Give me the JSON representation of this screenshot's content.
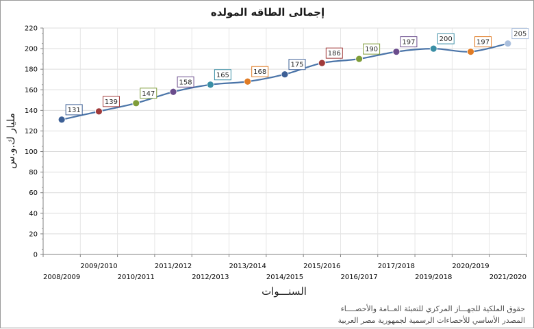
{
  "chart_data": {
    "type": "line",
    "title": "إجمالى الطاقه المولده",
    "xlabel": "السنـــوات",
    "ylabel": "مليار ك.و.س",
    "categories": [
      "2008/2009",
      "2009/2010",
      "2010/2011",
      "2011/2012",
      "2012/2013",
      "2013/2014",
      "2014/2015",
      "2015/2016",
      "2016/2017",
      "2017/2018",
      "2019/2018",
      "2020/2019",
      "2021/2020"
    ],
    "values": [
      131,
      139,
      147,
      158,
      165,
      168,
      175,
      186,
      190,
      197,
      200,
      197,
      205
    ],
    "data_labels": [
      "131",
      "139",
      "147",
      "158",
      "165",
      "168",
      "175",
      "186",
      "190",
      "197",
      "200",
      "197",
      "205"
    ],
    "ylim": [
      0,
      220
    ],
    "yticks": [
      "0",
      "20",
      "40",
      "60",
      "80",
      "100",
      "120",
      "140",
      "160",
      "180",
      "200",
      "220"
    ],
    "grid": true,
    "legend": "none",
    "line_color": "#4a74a8",
    "point_colors": [
      "#3d6096",
      "#a03a3a",
      "#7f9d3a",
      "#6a4c8c",
      "#3a8ea5",
      "#e07b24",
      "#3d6096",
      "#a03a3a",
      "#7f9d3a",
      "#6a4c8c",
      "#3a8ea5",
      "#e07b24",
      "#aabfdd"
    ]
  },
  "footer": {
    "copyright": "حقوق الملكية للجهـــاز المركزي للتعبئة العــامة والأحصــــاء",
    "source": "المصدر الأساسي للأحصاءات الرسمية لجمهورية مصر العربية"
  }
}
